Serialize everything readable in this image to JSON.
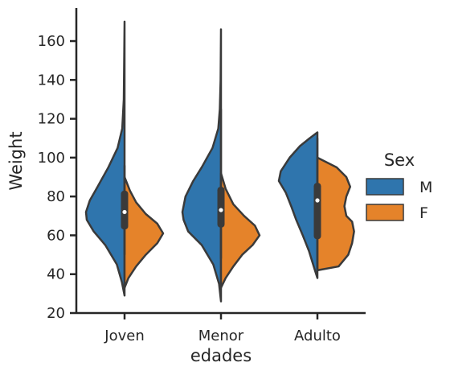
{
  "chart_data": {
    "type": "violin",
    "split": true,
    "xlabel": "edades",
    "ylabel": "Weight",
    "categories": [
      "Joven",
      "Menor",
      "Adulto"
    ],
    "ylim": [
      20,
      177
    ],
    "yticks": [
      20,
      40,
      60,
      80,
      100,
      120,
      140,
      160
    ],
    "legend": {
      "title": "Sex",
      "position": "right",
      "entries": [
        {
          "label": "M",
          "color": "#2f75ad"
        },
        {
          "label": "F",
          "color": "#e5832a"
        }
      ]
    },
    "series": [
      {
        "name": "M",
        "color": "#2f75ad",
        "violins": [
          {
            "category": "Joven",
            "min": 29,
            "max": 170,
            "profile": [
              [
                29,
                0
              ],
              [
                36,
                0.07
              ],
              [
                45,
                0.2
              ],
              [
                55,
                0.5
              ],
              [
                62,
                0.8
              ],
              [
                68,
                0.98
              ],
              [
                72,
                1.0
              ],
              [
                78,
                0.9
              ],
              [
                85,
                0.7
              ],
              [
                95,
                0.42
              ],
              [
                105,
                0.18
              ],
              [
                115,
                0.06
              ],
              [
                130,
                0.02
              ],
              [
                150,
                0.01
              ],
              [
                170,
                0
              ]
            ]
          },
          {
            "category": "Menor",
            "min": 26,
            "max": 166,
            "profile": [
              [
                26,
                0
              ],
              [
                35,
                0.05
              ],
              [
                45,
                0.2
              ],
              [
                55,
                0.5
              ],
              [
                62,
                0.85
              ],
              [
                68,
                0.97
              ],
              [
                72,
                1.0
              ],
              [
                80,
                0.92
              ],
              [
                88,
                0.72
              ],
              [
                95,
                0.5
              ],
              [
                105,
                0.22
              ],
              [
                115,
                0.07
              ],
              [
                125,
                0.03
              ],
              [
                140,
                0.01
              ],
              [
                166,
                0
              ]
            ]
          },
          {
            "category": "Adulto",
            "min": 38,
            "max": 113,
            "profile": [
              [
                38,
                0
              ],
              [
                43,
                0.08
              ],
              [
                52,
                0.22
              ],
              [
                60,
                0.38
              ],
              [
                68,
                0.55
              ],
              [
                75,
                0.68
              ],
              [
                82,
                0.82
              ],
              [
                88,
                1.0
              ],
              [
                93,
                0.95
              ],
              [
                100,
                0.72
              ],
              [
                106,
                0.45
              ],
              [
                110,
                0.2
              ],
              [
                113,
                0
              ]
            ]
          }
        ]
      },
      {
        "name": "F",
        "color": "#e5832a",
        "violins": [
          {
            "category": "Joven",
            "min": 33,
            "max": 90,
            "profile": [
              [
                33,
                0
              ],
              [
                38,
                0.1
              ],
              [
                44,
                0.3
              ],
              [
                50,
                0.55
              ],
              [
                56,
                0.85
              ],
              [
                61,
                1.0
              ],
              [
                66,
                0.85
              ],
              [
                71,
                0.55
              ],
              [
                77,
                0.3
              ],
              [
                83,
                0.14
              ],
              [
                90,
                0
              ]
            ]
          },
          {
            "category": "Menor",
            "min": 33,
            "max": 92,
            "profile": [
              [
                33,
                0
              ],
              [
                38,
                0.12
              ],
              [
                44,
                0.32
              ],
              [
                50,
                0.55
              ],
              [
                55,
                0.82
              ],
              [
                60,
                1.0
              ],
              [
                65,
                0.88
              ],
              [
                70,
                0.6
              ],
              [
                76,
                0.32
              ],
              [
                84,
                0.12
              ],
              [
                92,
                0
              ]
            ]
          },
          {
            "category": "Adulto",
            "min": 42,
            "max": 100,
            "profile": [
              [
                42,
                0
              ],
              [
                44,
                0.55
              ],
              [
                50,
                0.8
              ],
              [
                56,
                0.9
              ],
              [
                62,
                0.95
              ],
              [
                67,
                0.9
              ],
              [
                70,
                0.75
              ],
              [
                75,
                0.7
              ],
              [
                80,
                0.75
              ],
              [
                85,
                0.85
              ],
              [
                90,
                0.75
              ],
              [
                95,
                0.5
              ],
              [
                100,
                0
              ]
            ]
          }
        ]
      }
    ],
    "box": [
      {
        "category": "Joven",
        "q1": 63,
        "median": 72,
        "q3": 83,
        "whisker_low": 50,
        "whisker_high": 96
      },
      {
        "category": "Menor",
        "q1": 64,
        "median": 73,
        "q3": 85,
        "whisker_low": 48,
        "whisker_high": 125
      },
      {
        "category": "Adulto",
        "q1": 58,
        "median": 78,
        "q3": 87,
        "whisker_low": 42,
        "whisker_high": 110
      }
    ]
  }
}
